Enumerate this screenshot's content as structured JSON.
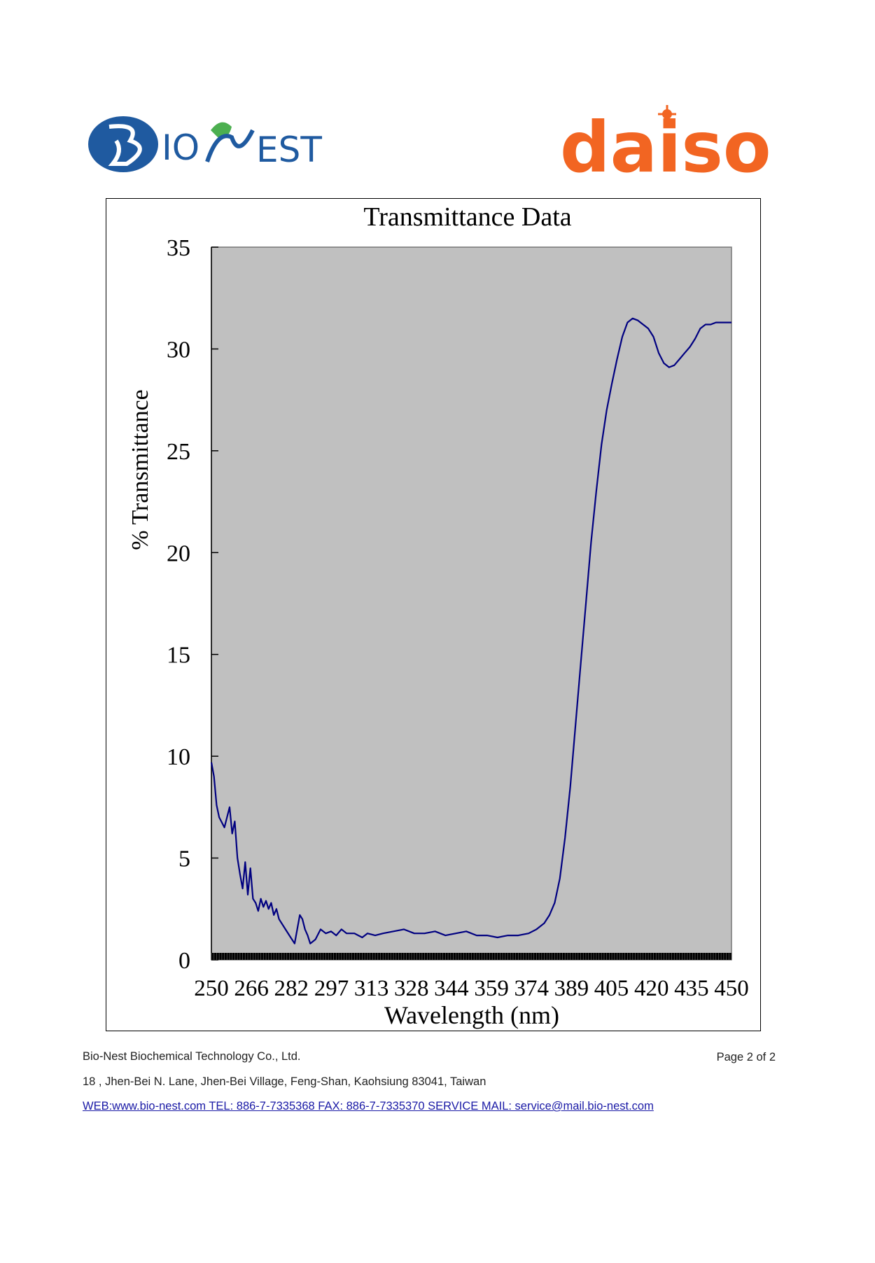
{
  "logos": {
    "left": {
      "text": "BIONEST",
      "color": "#1f5aa0",
      "accent": "#4caf50"
    },
    "right": {
      "text": "daiso",
      "color": "#f26522"
    }
  },
  "chart_data": {
    "type": "line",
    "title": "Transmittance Data",
    "xlabel": "Wavelength (nm)",
    "ylabel": "% Transmittance",
    "xlim": [
      250,
      450
    ],
    "ylim": [
      0,
      35
    ],
    "x_tick_labels": [
      "250",
      "266",
      "282",
      "297",
      "313",
      "328",
      "344",
      "359",
      "374",
      "389",
      "405",
      "420",
      "435",
      "450"
    ],
    "y_ticks": [
      0,
      5,
      10,
      15,
      20,
      25,
      30,
      35
    ],
    "plot_background": "#c0c0c0",
    "line_color": "#000080",
    "grid": false,
    "legend": "none",
    "x": [
      250,
      251,
      252,
      253,
      255,
      257,
      258,
      259,
      260,
      261,
      262,
      263,
      264,
      265,
      266,
      267,
      268,
      269,
      270,
      271,
      272,
      273,
      274,
      275,
      276,
      278,
      280,
      282,
      284,
      285,
      286,
      287,
      288,
      290,
      292,
      294,
      296,
      298,
      300,
      302,
      305,
      308,
      310,
      313,
      316,
      320,
      324,
      328,
      332,
      336,
      340,
      344,
      348,
      352,
      356,
      360,
      364,
      368,
      372,
      375,
      378,
      380,
      382,
      384,
      386,
      388,
      390,
      392,
      394,
      396,
      398,
      400,
      402,
      404,
      406,
      408,
      410,
      412,
      414,
      416,
      418,
      420,
      422,
      424,
      426,
      428,
      430,
      432,
      434,
      436,
      438,
      440,
      442,
      444,
      446,
      448,
      450
    ],
    "y": [
      9.7,
      9.0,
      7.6,
      7.0,
      6.5,
      7.5,
      6.2,
      6.8,
      5.0,
      4.2,
      3.5,
      4.8,
      3.2,
      4.5,
      3.0,
      2.8,
      2.4,
      3.0,
      2.6,
      2.9,
      2.5,
      2.8,
      2.2,
      2.5,
      2.0,
      1.6,
      1.2,
      0.8,
      2.2,
      2.0,
      1.5,
      1.2,
      0.8,
      1.0,
      1.5,
      1.3,
      1.4,
      1.2,
      1.5,
      1.3,
      1.3,
      1.1,
      1.3,
      1.2,
      1.3,
      1.4,
      1.5,
      1.3,
      1.3,
      1.4,
      1.2,
      1.3,
      1.4,
      1.2,
      1.2,
      1.1,
      1.2,
      1.2,
      1.3,
      1.5,
      1.8,
      2.2,
      2.8,
      4.0,
      6.0,
      8.5,
      11.5,
      14.5,
      17.5,
      20.5,
      23.0,
      25.3,
      27.0,
      28.3,
      29.5,
      30.6,
      31.3,
      31.5,
      31.4,
      31.2,
      31.0,
      30.6,
      29.8,
      29.3,
      29.1,
      29.2,
      29.5,
      29.8,
      30.1,
      30.5,
      31.0,
      31.2,
      31.2,
      31.3,
      31.3,
      31.3,
      31.3
    ]
  },
  "footer": {
    "company": "Bio-Nest Biochemical Technology Co., Ltd.",
    "page": "Page 2  of  2",
    "address": "18 , Jhen-Bei N. Lane, Jhen-Bei Village, Feng-Shan, Kaohsiung 83041, Taiwan",
    "contact": "WEB:www.bio-nest.com  TEL: 886-7-7335368   FAX: 886-7-7335370   SERVICE MAIL: service@mail.bio-nest.com"
  }
}
